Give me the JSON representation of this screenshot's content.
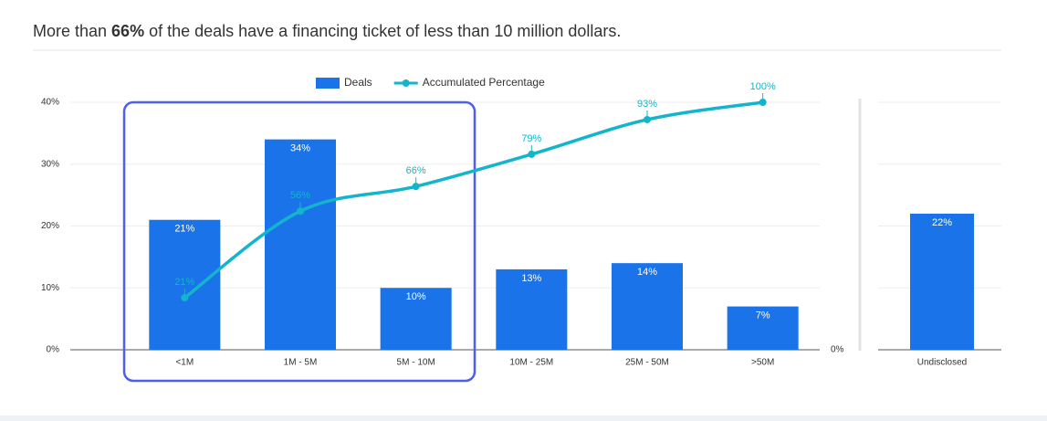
{
  "title_runs": [
    "More than ",
    "66%",
    " of the deals have a financing ticket of less than 10 million dollars."
  ],
  "chart_data": [
    {
      "type": "bar",
      "categories": [
        "<1M",
        "1M - 5M",
        "5M - 10M",
        "10M - 25M",
        "25M - 50M",
        ">50M"
      ],
      "series": [
        {
          "name": "Deals",
          "type": "bar",
          "color": "#1a73e8",
          "values": [
            21,
            34,
            10,
            13,
            14,
            7
          ],
          "value_labels": [
            "21%",
            "34%",
            "10%",
            "13%",
            "14%",
            "7%"
          ]
        },
        {
          "name": "Accumulated Percentage",
          "type": "line",
          "axis": "y2",
          "color": "#12b5cb",
          "values": [
            21,
            56,
            66,
            79,
            93,
            100
          ],
          "value_labels": [
            "21%",
            "56%",
            "66%",
            "79%",
            "93%",
            "100%"
          ]
        }
      ],
      "ylim": [
        0,
        40
      ],
      "yticks": [
        {
          "value": 0,
          "label": "0%"
        },
        {
          "value": 10,
          "label": "10%"
        },
        {
          "value": 20,
          "label": "20%"
        },
        {
          "value": 30,
          "label": "30%"
        },
        {
          "value": 40,
          "label": "40%"
        }
      ],
      "y2lim": [
        0,
        100
      ],
      "y2ticks": [
        {
          "value": 0,
          "label": "0%"
        }
      ],
      "grid": true,
      "legend": "top"
    },
    {
      "type": "bar",
      "categories": [
        "Undisclosed"
      ],
      "color": "#1a73e8",
      "values": [
        22
      ],
      "value_labels": [
        "22%"
      ],
      "ylim": [
        0,
        40
      ],
      "yticks": [
        0,
        10,
        20,
        30,
        40
      ],
      "grid": true
    }
  ]
}
